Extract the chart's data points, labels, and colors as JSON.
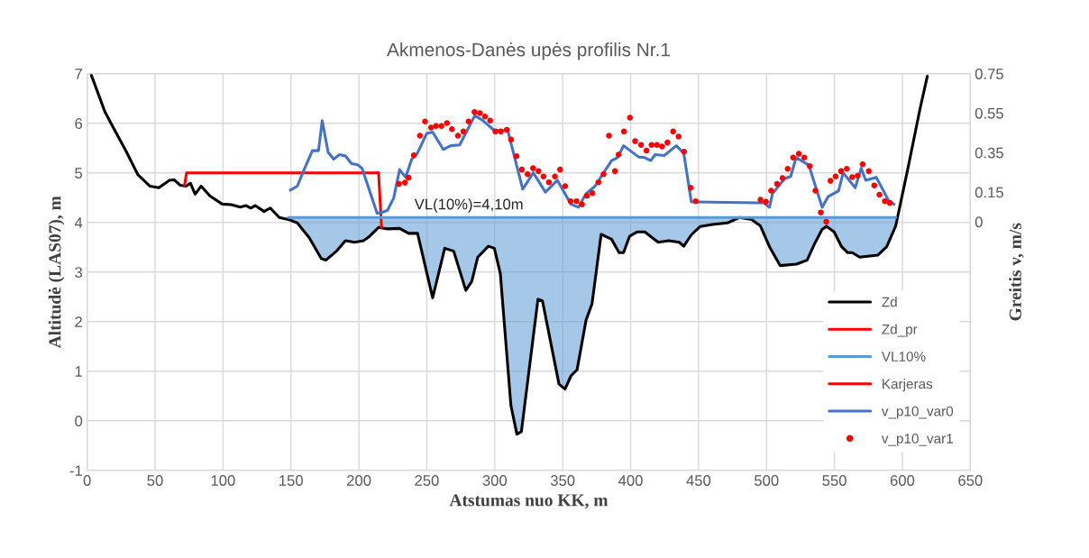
{
  "chart_data": {
    "type": "line",
    "title": "Akmenos-Danės upės profilis Nr.1",
    "xlabel": "Atstumas nuo KK, m",
    "ylabel": "Altitudė (LAS07), m",
    "y2label": "Greitis v, m/s",
    "xlim": [
      0,
      650
    ],
    "xticks": [
      0,
      50,
      100,
      150,
      200,
      250,
      300,
      350,
      400,
      450,
      500,
      550,
      600,
      650
    ],
    "ylim": [
      -1,
      7
    ],
    "yticks": [
      -1,
      0,
      1,
      2,
      3,
      4,
      5,
      6,
      7
    ],
    "y2lim": [
      -1.26,
      0.75
    ],
    "y2ticks": [
      0,
      0.15,
      0.35,
      0.55,
      0.75
    ],
    "grid": true,
    "legend": "bottom right",
    "annotations": [
      {
        "text": "VL(10%)=4,10m",
        "x": 281,
        "y": 4.1
      }
    ],
    "series": [
      {
        "name": "Zd",
        "color": "#000000",
        "x": [
          3.1,
          13.1,
          19.7,
          28.6,
          37.4,
          46.3,
          52.8,
          60.6,
          64,
          68.4,
          72.8,
          76.1,
          79.5,
          83.9,
          90.5,
          99.4,
          106,
          112.7,
          117,
          120.4,
          123.7,
          130.3,
          134.8,
          141.4,
          148.1,
          154.7,
          163.5,
          172.4,
          175.7,
          183.5,
          190.1,
          196.8,
          203.4,
          207.8,
          214.5,
          221.1,
          230,
          236.6,
          243.2,
          254.3,
          263.2,
          269.8,
          278.7,
          283.1,
          287.5,
          295.3,
          299.7,
          304.1,
          311.9,
          316.3,
          319.6,
          331.8,
          335.1,
          347.3,
          351.7,
          356.2,
          360.6,
          367.2,
          371.6,
          378.3,
          386,
          391.5,
          394.8,
          399.2,
          404.8,
          410.4,
          420.3,
          428.1,
          435.8,
          439.1,
          444.7,
          451.3,
          460.2,
          471.2,
          480.1,
          489,
          495.5,
          502.2,
          510,
          522.1,
          529.9,
          535.4,
          540.9,
          544.3,
          549.8,
          555.3,
          559.8,
          563.1,
          568.6,
          581.9,
          588.5,
          595.1,
          604,
          613,
          618.4
        ],
        "values": [
          6.97,
          6.23,
          5.89,
          5.44,
          4.96,
          4.73,
          4.7,
          4.85,
          4.86,
          4.75,
          4.73,
          4.79,
          4.57,
          4.73,
          4.53,
          4.37,
          4.36,
          4.31,
          4.34,
          4.29,
          4.34,
          4.22,
          4.29,
          4.1,
          4.06,
          3.99,
          3.69,
          3.27,
          3.24,
          3.42,
          3.63,
          3.6,
          3.63,
          3.72,
          3.9,
          3.87,
          3.88,
          3.78,
          3.78,
          2.48,
          3.48,
          3.42,
          2.63,
          2.81,
          3.3,
          3.52,
          3.48,
          2.97,
          0.31,
          -0.27,
          -0.22,
          2.45,
          2.42,
          0.74,
          0.64,
          0.91,
          1.03,
          2.03,
          2.36,
          3.76,
          3.66,
          3.39,
          3.39,
          3.72,
          3.81,
          3.81,
          3.6,
          3.63,
          3.6,
          3.52,
          3.75,
          3.92,
          3.96,
          3.99,
          4.1,
          4.06,
          3.93,
          3.51,
          3.13,
          3.16,
          3.24,
          3.57,
          3.86,
          3.92,
          3.81,
          3.51,
          3.39,
          3.39,
          3.3,
          3.34,
          3.51,
          3.93,
          5.08,
          6.29,
          6.95
        ]
      },
      {
        "name": "Zd_pr",
        "color": "#ff0000",
        "x": [
          214.5,
          216.7
        ],
        "values": [
          5.0,
          3.9
        ]
      },
      {
        "name": "VL10%",
        "color": "#5b9bd5",
        "x": [
          148.1,
          154.7,
          163.5,
          172.4,
          175.7,
          183.5,
          190.1,
          196.8,
          203.4,
          207.8,
          214.5,
          221.1,
          230,
          236.6,
          243.2,
          254.3,
          263.2,
          269.8,
          278.7,
          283.1,
          287.5,
          295.3,
          299.7,
          304.1,
          311.9,
          316.3,
          319.6,
          331.8,
          335.1,
          347.3,
          351.7,
          356.2,
          360.6,
          367.2,
          371.6,
          378.3,
          386,
          391.5,
          394.8,
          399.2,
          404.8,
          410.4,
          420.3,
          428.1,
          435.8,
          439.1,
          444.7,
          451.3,
          460.2,
          471.2,
          480.1,
          489,
          495.5,
          502.2,
          510,
          522.1,
          529.9,
          535.4,
          540.9,
          544.3,
          549.8,
          555.3,
          559.8,
          563.1,
          568.6,
          581.9,
          588.5,
          595.1
        ],
        "values": [
          4.1,
          4.1,
          4.1,
          4.1,
          4.1,
          4.1,
          4.1,
          4.1,
          4.1,
          4.1,
          4.1,
          4.1,
          4.1,
          4.1,
          4.1,
          4.1,
          4.1,
          4.1,
          4.1,
          4.1,
          4.1,
          4.1,
          4.1,
          4.1,
          4.1,
          4.1,
          4.1,
          4.1,
          4.1,
          4.1,
          4.1,
          4.1,
          4.1,
          4.1,
          4.1,
          4.1,
          4.1,
          4.1,
          4.1,
          4.1,
          4.1,
          4.1,
          4.1,
          4.1,
          4.1,
          4.1,
          4.1,
          4.1,
          4.1,
          4.1,
          4.1,
          4.1,
          4.1,
          4.1,
          4.1,
          4.1,
          4.1,
          4.1,
          4.1,
          4.1,
          4.1,
          4.1,
          4.1,
          4.1,
          4.1,
          4.1,
          4.1,
          4.1
        ],
        "upper": [
          4.1,
          4.1,
          4.1,
          4.1,
          4.1,
          4.1,
          4.1,
          4.1,
          4.1,
          4.1,
          4.1,
          4.1,
          4.1,
          4.1,
          4.1,
          4.1,
          4.1,
          4.1,
          4.1,
          4.1,
          4.1,
          4.1,
          4.1,
          4.1,
          4.1,
          4.1,
          4.1,
          4.1,
          4.1,
          4.1,
          4.1,
          4.1,
          4.1,
          4.1,
          4.1,
          4.1,
          4.1,
          4.1,
          4.1,
          4.1,
          4.1,
          4.1,
          4.1,
          4.1,
          4.1,
          4.1,
          4.1,
          4.1,
          4.1,
          4.1,
          4.1,
          4.1,
          4.1,
          4.1,
          4.1,
          4.1,
          4.1,
          4.1,
          4.1,
          4.1,
          4.1,
          4.1,
          4.1,
          4.1,
          4.1,
          4.1,
          4.1,
          4.1
        ],
        "lower": [
          4.06,
          3.99,
          3.69,
          3.27,
          3.24,
          3.42,
          3.63,
          3.6,
          3.63,
          3.72,
          3.9,
          3.87,
          3.88,
          3.78,
          3.78,
          2.48,
          3.48,
          3.42,
          2.63,
          2.81,
          3.3,
          3.52,
          3.48,
          2.97,
          0.31,
          -0.27,
          -0.22,
          2.45,
          2.42,
          0.74,
          0.64,
          0.91,
          1.03,
          2.03,
          2.36,
          3.76,
          3.66,
          3.39,
          3.39,
          3.72,
          3.81,
          3.81,
          3.6,
          3.63,
          3.6,
          3.52,
          3.75,
          3.92,
          3.96,
          3.99,
          4.1,
          4.06,
          3.93,
          3.51,
          3.13,
          3.16,
          3.24,
          3.57,
          3.86,
          3.92,
          3.81,
          3.51,
          3.39,
          3.39,
          3.3,
          3.34,
          3.51,
          3.93
        ]
      },
      {
        "name": "Karjeras",
        "color": "#ff0000",
        "x": [
          71.7,
          73.2,
          214.5
        ],
        "values": [
          4.75,
          5.0,
          5.0
        ]
      },
      {
        "name": "v_p10_var0",
        "axis": "y2",
        "color": "#4472c4",
        "x": [
          149.6,
          154.7,
          159.2,
          165.8,
          170.3,
          173,
          177.4,
          181.4,
          185.8,
          190.1,
          194.6,
          199,
          202.3,
          213.4,
          216.7,
          221.1,
          225.6,
          230,
          234.4,
          238.9,
          243.2,
          249.9,
          254.3,
          262.1,
          267.6,
          274.2,
          279.7,
          285.3,
          290.8,
          299.7,
          309.6,
          320.6,
          328.4,
          337.3,
          346.1,
          356.2,
          361.6,
          367.2,
          373.8,
          386,
          390.4,
          394.8,
          405.9,
          410.4,
          414.8,
          418.1,
          424.7,
          433.6,
          439.1,
          444.7,
          448,
          493.4,
          497.8,
          502.2,
          504.4,
          513.3,
          517.8,
          521.8,
          531.1,
          541,
          545.4,
          553.1,
          556.4,
          565.3,
          569.7,
          573,
          580.8,
          590.1,
          593.9
        ],
        "values": [
          0.16,
          0.18,
          0.256,
          0.36,
          0.36,
          0.512,
          0.351,
          0.317,
          0.34,
          0.333,
          0.294,
          0.289,
          0.271,
          0.043,
          0.046,
          0.058,
          0.119,
          0.264,
          0.225,
          0.317,
          0.348,
          0.447,
          0.454,
          0.366,
          0.385,
          0.389,
          0.462,
          0.538,
          0.515,
          0.462,
          0.462,
          0.165,
          0.248,
          0.15,
          0.21,
          0.088,
          0.073,
          0.142,
          0.18,
          0.31,
          0.325,
          0.385,
          0.328,
          0.325,
          0.31,
          0.34,
          0.335,
          0.385,
          0.347,
          0.1,
          0.1,
          0.096,
          0.096,
          0.073,
          0.142,
          0.218,
          0.229,
          0.325,
          0.287,
          0.073,
          0.127,
          0.157,
          0.248,
          0.172,
          0.271,
          0.21,
          0.225,
          0.104,
          0.088
        ]
      },
      {
        "name": "v_p10_var1",
        "type": "scatter",
        "axis": "y2",
        "color": "#ff0000",
        "marker": "circle",
        "x": [
          229.5,
          233.9,
          236.6,
          240.5,
          244.9,
          248.7,
          253.1,
          256.8,
          260.8,
          264.8,
          268.5,
          272.9,
          276.9,
          280.7,
          285.1,
          289.1,
          292.8,
          296.6,
          300.5,
          304.5,
          308.9,
          312,
          316,
          320,
          324.2,
          328.2,
          332.2,
          335.9,
          339.9,
          344.3,
          348.1,
          351.8,
          355.8,
          360.2,
          364.2,
          367.9,
          371.9,
          376.3,
          380.1,
          384.1,
          388.5,
          391.1,
          395.1,
          399.5,
          403.3,
          407.7,
          411.7,
          415.4,
          419.4,
          423.1,
          427.1,
          431.3,
          435.3,
          439.3,
          444.2,
          447.9,
          495.6,
          499.6,
          503.4,
          507.8,
          511.8,
          515.6,
          519.6,
          523.8,
          527.8,
          531.8,
          536,
          540,
          544,
          547.1,
          550.9,
          554.9,
          559.1,
          563.1,
          567.1,
          570.8,
          575.3,
          579.3,
          583.1,
          587.1,
          590.8
        ],
        "values": [
          0.192,
          0.198,
          0.223,
          0.337,
          0.436,
          0.508,
          0.477,
          0.485,
          0.485,
          0.5,
          0.469,
          0.436,
          0.457,
          0.508,
          0.556,
          0.55,
          0.533,
          0.512,
          0.457,
          0.457,
          0.466,
          0.416,
          0.332,
          0.264,
          0.241,
          0.271,
          0.256,
          0.229,
          0.2,
          0.229,
          0.264,
          0.18,
          0.104,
          0.104,
          0.088,
          0.131,
          0.145,
          0.2,
          0.241,
          0.436,
          0.256,
          0.34,
          0.457,
          0.527,
          0.408,
          0.389,
          0.36,
          0.389,
          0.389,
          0.381,
          0.401,
          0.457,
          0.431,
          0.355,
          0.172,
          0.104,
          0.111,
          0.101,
          0.157,
          0.192,
          0.221,
          0.268,
          0.325,
          0.344,
          0.325,
          0.282,
          0.157,
          0.047,
          0.0,
          0.207,
          0.229,
          0.256,
          0.268,
          0.226,
          0.233,
          0.291,
          0.256,
          0.184,
          0.137,
          0.104,
          0.095
        ]
      }
    ]
  }
}
